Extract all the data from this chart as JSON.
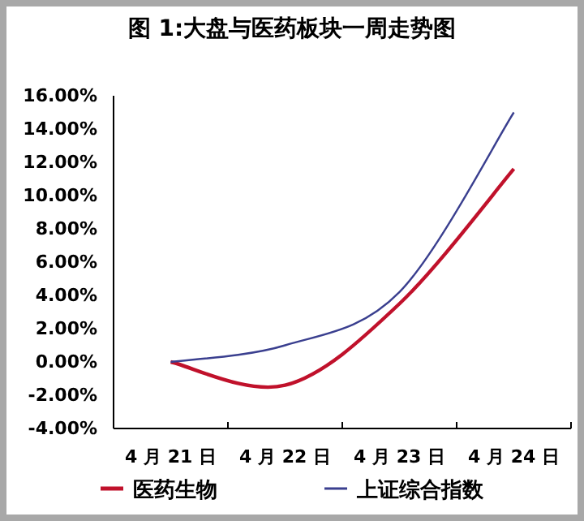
{
  "chart_data": {
    "type": "line",
    "title": "图 1:大盘与医药板块一周走势图",
    "categories": [
      "4 月 21 日",
      "4 月 22 日",
      "4 月 23 日",
      "4 月 24 日"
    ],
    "series": [
      {
        "name": "医药生物",
        "color": "#c0112b",
        "values": [
          0,
          -1.4,
          3.5,
          11.6
        ]
      },
      {
        "name": "上证综合指数",
        "color": "#3a3f8f",
        "values": [
          0,
          1.0,
          4.2,
          15.0
        ]
      }
    ],
    "ylim": [
      -4,
      16
    ],
    "yticks": [
      {
        "value": -4,
        "label": "-4.00%"
      },
      {
        "value": -2,
        "label": "-2.00%"
      },
      {
        "value": 0,
        "label": "0.00%"
      },
      {
        "value": 2,
        "label": "2.00%"
      },
      {
        "value": 4,
        "label": "4.00%"
      },
      {
        "value": 6,
        "label": "6.00%"
      },
      {
        "value": 8,
        "label": "8.00%"
      },
      {
        "value": 10,
        "label": "10.00%"
      },
      {
        "value": 12,
        "label": "12.00%"
      },
      {
        "value": 14,
        "label": "14.00%"
      },
      {
        "value": 16,
        "label": "16.00%"
      }
    ],
    "legend": "bottom"
  }
}
